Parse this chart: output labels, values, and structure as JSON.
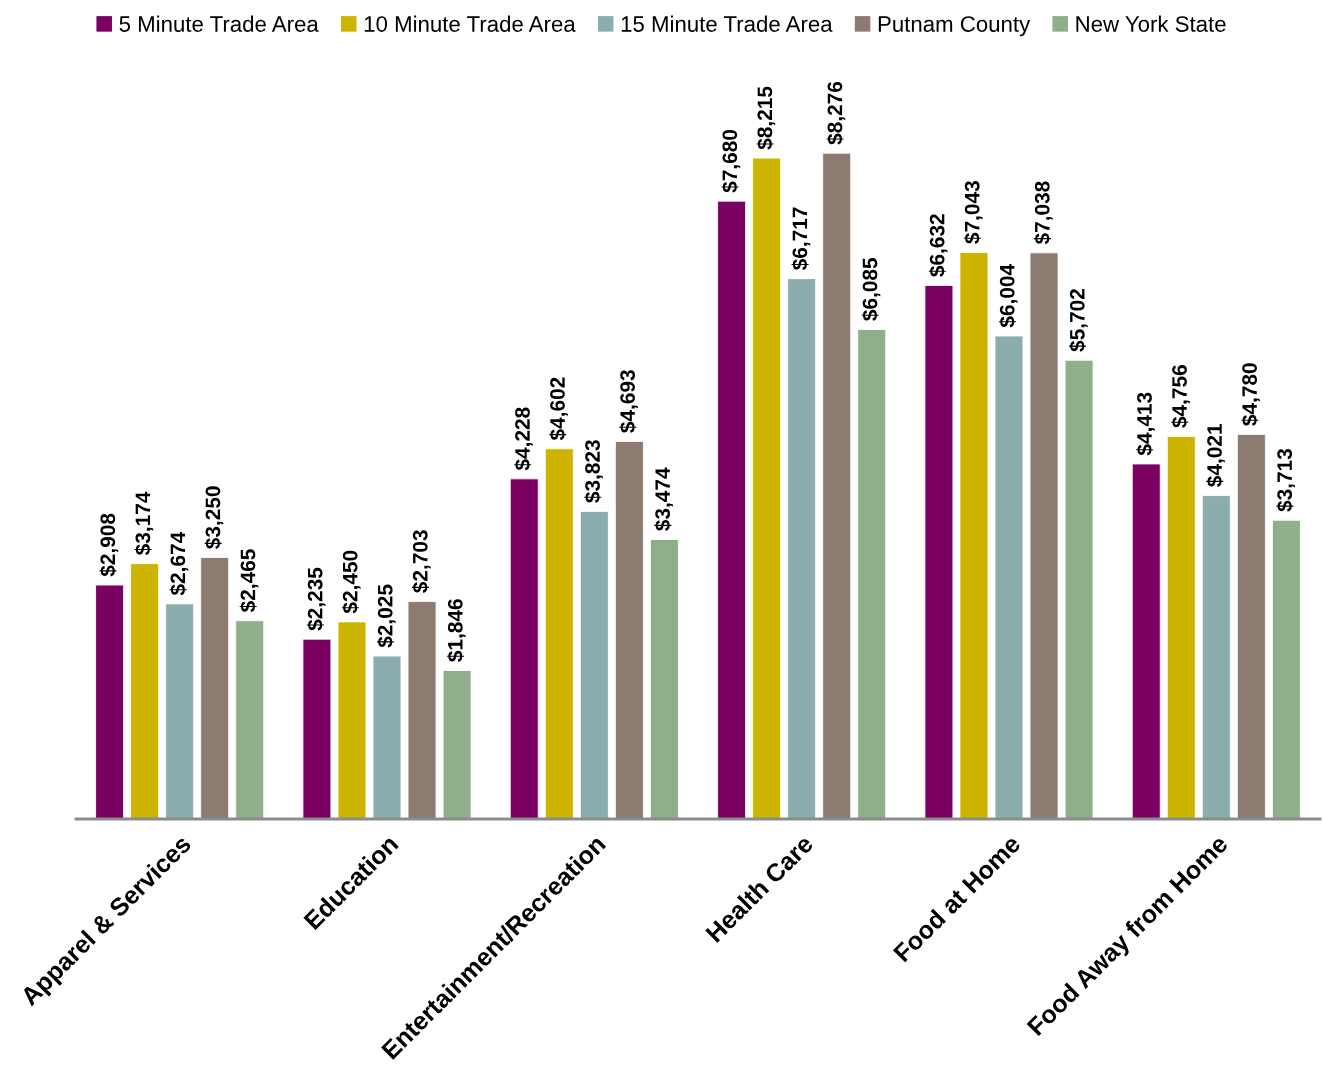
{
  "chart_data": {
    "type": "bar",
    "categories": [
      "Apparel & Services",
      "Education",
      "Entertainment/Recreation",
      "Health Care",
      "Food at Home",
      "Food Away from Home"
    ],
    "series": [
      {
        "name": "5 Minute Trade Area",
        "color": "#7a0061",
        "values": [
          2908,
          2235,
          4228,
          7680,
          6632,
          4413
        ],
        "value_labels": [
          "$2,908",
          "$2,235",
          "$4,228",
          "$7,680",
          "$6,632",
          "$4,413"
        ]
      },
      {
        "name": "10 Minute Trade Area",
        "color": "#ccb400",
        "values": [
          3174,
          2450,
          4602,
          8215,
          7043,
          4756
        ],
        "value_labels": [
          "$3,174",
          "$2,450",
          "$4,602",
          "$8,215",
          "$7,043",
          "$4,756"
        ]
      },
      {
        "name": "15 Minute Trade Area",
        "color": "#8badae",
        "values": [
          2674,
          2025,
          3823,
          6717,
          6004,
          4021
        ],
        "value_labels": [
          "$2,674",
          "$2,025",
          "$3,823",
          "$6,717",
          "$6,004",
          "$4,021"
        ]
      },
      {
        "name": "Putnam County",
        "color": "#8b7b71",
        "values": [
          3250,
          2703,
          4693,
          8276,
          7038,
          4780
        ],
        "value_labels": [
          "$3,250",
          "$2,703",
          "$4,693",
          "$8,276",
          "$7,038",
          "$4,780"
        ]
      },
      {
        "name": "New York State",
        "color": "#8faf8b",
        "values": [
          2465,
          1846,
          3474,
          6085,
          5702,
          3713
        ],
        "value_labels": [
          "$2,465",
          "$1,846",
          "$3,474",
          "$6,085",
          "$5,702",
          "$3,713"
        ]
      }
    ],
    "legend": "top",
    "tick_labels": "x",
    "grid": false
  }
}
